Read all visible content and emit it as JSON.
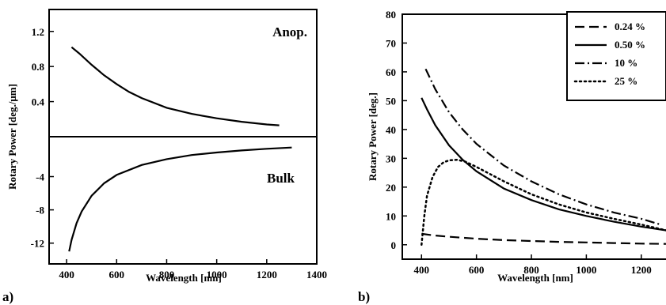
{
  "chart_data": [
    {
      "type": "line",
      "panel_label": "a)",
      "xlabel": "Wavelength [nm]",
      "ylabel": "Rotary Power [deg./μm]",
      "xlim": [
        330,
        1400
      ],
      "x_ticks": [
        400,
        600,
        800,
        1000,
        1200,
        1400
      ],
      "sub_axes": [
        {
          "name": "Anop.",
          "ylim": [
            0,
            1.45
          ],
          "y_ticks": [
            0.4,
            0.8,
            1.2
          ],
          "y_tick_labels": [
            "0.4",
            "0.8",
            "1.2"
          ],
          "x": [
            420,
            450,
            500,
            550,
            600,
            650,
            700,
            800,
            900,
            1000,
            1100,
            1200,
            1250
          ],
          "y": [
            1.02,
            0.95,
            0.82,
            0.7,
            0.6,
            0.51,
            0.44,
            0.33,
            0.26,
            0.21,
            0.17,
            0.14,
            0.13
          ]
        },
        {
          "name": "Bulk",
          "ylim": [
            -14.5,
            0.8
          ],
          "y_ticks": [
            -4,
            -8,
            -12
          ],
          "y_tick_labels": [
            "-4",
            "-8",
            "-12"
          ],
          "x": [
            410,
            420,
            440,
            460,
            500,
            550,
            600,
            700,
            800,
            900,
            1000,
            1100,
            1200,
            1300
          ],
          "y": [
            -13.0,
            -11.6,
            -9.6,
            -8.2,
            -6.3,
            -4.8,
            -3.8,
            -2.6,
            -1.9,
            -1.4,
            -1.1,
            -0.85,
            -0.65,
            -0.5
          ]
        }
      ]
    },
    {
      "type": "line",
      "panel_label": "b)",
      "xlabel": "Wavelength [nm]",
      "ylabel": "Rotary Power [deg.]",
      "xlim": [
        330,
        1290
      ],
      "ylim": [
        -5,
        80
      ],
      "x_ticks": [
        400,
        600,
        800,
        1000,
        1200
      ],
      "y_ticks": [
        0,
        10,
        20,
        30,
        40,
        50,
        60,
        70,
        80
      ],
      "legend_position": "top-right",
      "series": [
        {
          "name": "0.24 %",
          "dash": "dashed",
          "x": [
            400,
            450,
            500,
            600,
            700,
            800,
            900,
            1000,
            1100,
            1200,
            1290
          ],
          "y": [
            3.8,
            3.2,
            2.8,
            2.1,
            1.6,
            1.3,
            1.0,
            0.8,
            0.6,
            0.4,
            0.3
          ]
        },
        {
          "name": "0.50 %",
          "dash": "solid",
          "x": [
            400,
            420,
            450,
            500,
            550,
            600,
            700,
            800,
            900,
            1000,
            1100,
            1200,
            1290
          ],
          "y": [
            51,
            47,
            41.5,
            34.5,
            29.5,
            25.5,
            19.5,
            15.5,
            12.3,
            10,
            8,
            6.3,
            5
          ]
        },
        {
          "name": "10 %",
          "dash": "dashdot",
          "x": [
            415,
            450,
            500,
            550,
            600,
            700,
            800,
            900,
            1000,
            1100,
            1200,
            1270
          ],
          "y": [
            61,
            54,
            46,
            40,
            35,
            27.5,
            22,
            17.5,
            14,
            11.2,
            9,
            7
          ]
        },
        {
          "name": "25 %",
          "dash": "dotted",
          "x": [
            400,
            410,
            420,
            440,
            460,
            480,
            500,
            530,
            560,
            600,
            700,
            800,
            900,
            1000,
            1100,
            1200,
            1290
          ],
          "y": [
            0,
            10,
            17,
            23.5,
            27,
            28.6,
            29.3,
            29.5,
            28.8,
            27,
            22,
            17.5,
            14,
            11.2,
            9,
            7,
            5
          ]
        }
      ]
    }
  ]
}
